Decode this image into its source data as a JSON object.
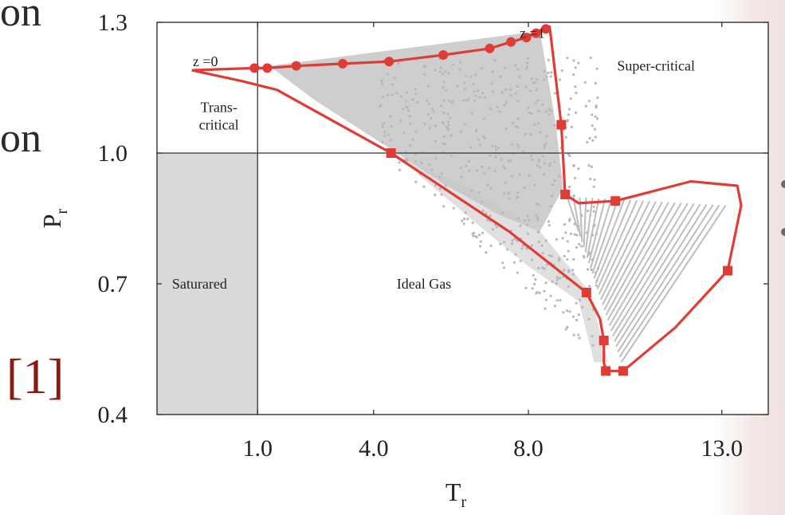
{
  "side_text": {
    "line1": "on",
    "line2": "on"
  },
  "reference_label": "[1]",
  "colors": {
    "envelope": "#e03c36",
    "scatter": "#c6c6c6",
    "saturated_region": "#d9d9d9",
    "reference": "#8b1a14"
  },
  "chart_data": {
    "type": "scatter",
    "xlabel": "T",
    "xlabel_sub": "r",
    "ylabel": "P",
    "ylabel_sub": "r",
    "xlim": [
      -1.6,
      14.2
    ],
    "ylim": [
      0.4,
      1.3
    ],
    "x_ticks": [
      1.0,
      4.0,
      8.0,
      13.0
    ],
    "x_tick_labels": [
      "1.0",
      "4.0",
      "8.0",
      "13.0"
    ],
    "y_ticks": [
      0.4,
      0.7,
      1.0,
      1.3
    ],
    "y_tick_labels": [
      "0.4",
      "0.7",
      "1.0",
      "1.3"
    ],
    "reference_lines": {
      "x": 1.0,
      "y": 1.0
    },
    "regions": [
      {
        "label": "Saturared",
        "x": -0.5,
        "y": 0.7
      },
      {
        "label": "Ideal Gas",
        "x": 5.3,
        "y": 0.7
      },
      {
        "label": "Trans-",
        "x": 0.0,
        "y": 1.105
      },
      {
        "label": "critical",
        "x": 0.0,
        "y": 1.065
      },
      {
        "label": "Super-critical",
        "x": 11.3,
        "y": 1.2
      }
    ],
    "annotations": [
      {
        "label": "z =0",
        "x": -0.35,
        "y": 1.21
      },
      {
        "label": "z =1",
        "x": 8.1,
        "y": 1.275
      }
    ],
    "series": [
      {
        "marker": "circle",
        "points": [
          [
            0.92,
            1.195
          ],
          [
            1.25,
            1.195
          ],
          [
            2.0,
            1.2
          ],
          [
            3.2,
            1.205
          ],
          [
            4.4,
            1.21
          ],
          [
            5.8,
            1.225
          ],
          [
            7.0,
            1.24
          ],
          [
            7.55,
            1.255
          ],
          [
            7.95,
            1.265
          ],
          [
            8.2,
            1.275
          ],
          [
            8.45,
            1.285
          ]
        ]
      },
      {
        "marker": "square",
        "points": [
          [
            4.45,
            1.0
          ],
          [
            8.85,
            1.065
          ],
          [
            8.95,
            0.905
          ],
          [
            10.25,
            0.89
          ],
          [
            13.15,
            0.73
          ],
          [
            9.5,
            0.68
          ],
          [
            9.95,
            0.57
          ],
          [
            10.0,
            0.5
          ],
          [
            10.45,
            0.5
          ]
        ]
      }
    ]
  }
}
